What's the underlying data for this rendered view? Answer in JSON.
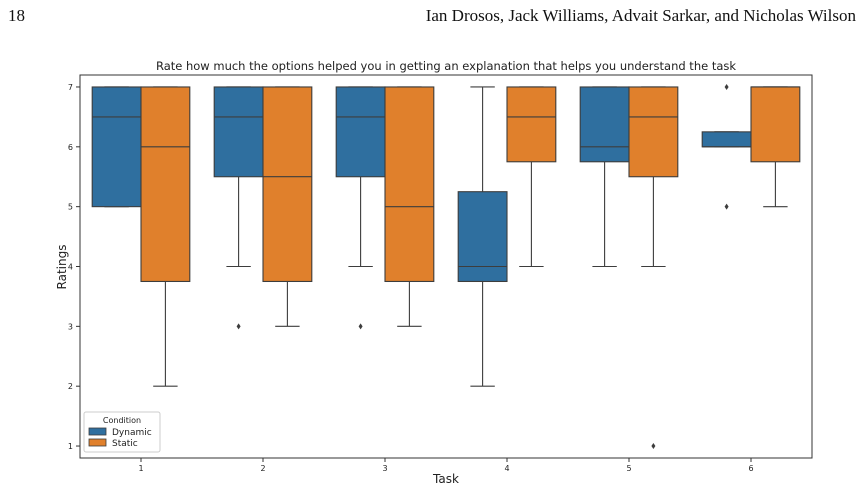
{
  "page": {
    "number": "18",
    "authors": "Ian Drosos, Jack Williams, Advait Sarkar, and Nicholas Wilson"
  },
  "chart_data": {
    "type": "box",
    "title": "Rate how much the options helped you in getting an explanation that helps you understand the task",
    "xlabel": "Task",
    "ylabel": "Ratings",
    "categories": [
      "1",
      "2",
      "3",
      "4",
      "5",
      "6"
    ],
    "ylim": [
      0.8,
      7.2
    ],
    "yticks": [
      "1",
      "2",
      "3",
      "4",
      "5",
      "6",
      "7"
    ],
    "grid": false,
    "legend": {
      "title": "Condition",
      "placement": "lower-left"
    },
    "series": [
      {
        "name": "Dynamic",
        "color": "#2f6f9f",
        "boxes": [
          {
            "whislo": 5,
            "q1": 5,
            "med": 6.5,
            "q3": 7,
            "whishi": 7,
            "fliers": []
          },
          {
            "whislo": 4,
            "q1": 5.5,
            "med": 6.5,
            "q3": 7,
            "whishi": 7,
            "fliers": [
              3
            ]
          },
          {
            "whislo": 4,
            "q1": 5.5,
            "med": 6.5,
            "q3": 7,
            "whishi": 7,
            "fliers": [
              3
            ]
          },
          {
            "whislo": 2,
            "q1": 3.75,
            "med": 4,
            "q3": 5.25,
            "whishi": 7,
            "fliers": []
          },
          {
            "whislo": 4,
            "q1": 5.75,
            "med": 6,
            "q3": 7,
            "whishi": 7,
            "fliers": []
          },
          {
            "whislo": 6,
            "q1": 6,
            "med": 6,
            "q3": 6.25,
            "whishi": 6.25,
            "fliers": [
              7,
              5
            ]
          }
        ]
      },
      {
        "name": "Static",
        "color": "#e0802c",
        "boxes": [
          {
            "whislo": 2,
            "q1": 3.75,
            "med": 6,
            "q3": 7,
            "whishi": 7,
            "fliers": []
          },
          {
            "whislo": 3,
            "q1": 3.75,
            "med": 5.5,
            "q3": 7,
            "whishi": 7,
            "fliers": []
          },
          {
            "whislo": 3,
            "q1": 3.75,
            "med": 5,
            "q3": 7,
            "whishi": 7,
            "fliers": []
          },
          {
            "whislo": 4,
            "q1": 5.75,
            "med": 6.5,
            "q3": 7,
            "whishi": 7,
            "fliers": []
          },
          {
            "whislo": 4,
            "q1": 5.5,
            "med": 6.5,
            "q3": 7,
            "whishi": 7,
            "fliers": [
              1
            ]
          },
          {
            "whislo": 5,
            "q1": 5.75,
            "med": 7,
            "q3": 7,
            "whishi": 7,
            "fliers": []
          }
        ]
      }
    ]
  }
}
